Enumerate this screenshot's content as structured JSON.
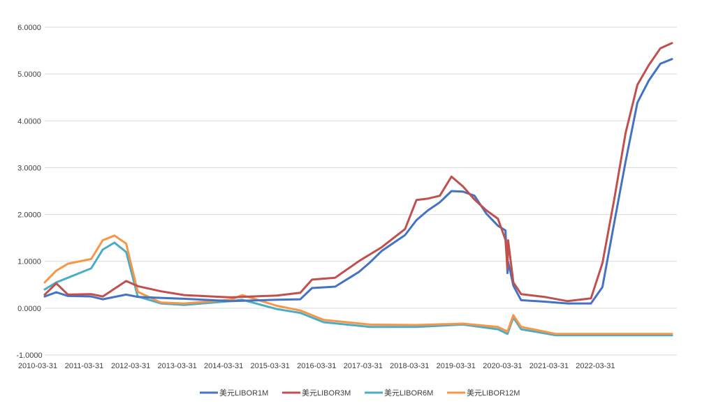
{
  "chart_data": {
    "type": "line",
    "title": "",
    "xlabel": "",
    "ylabel": "",
    "ylim": [
      -1,
      6
    ],
    "xlim": [
      "2010-03-31",
      "2023-09-29"
    ],
    "grid": "horizontal",
    "legend_position": "bottom",
    "y_ticks": [
      "-1.0000",
      "0.0000",
      "1.0000",
      "2.0000",
      "3.0000",
      "4.0000",
      "5.0000",
      "6.0000"
    ],
    "x_ticks": [
      "2010-03-31",
      "2011-03-31",
      "2012-03-31",
      "2013-03-31",
      "2014-03-31",
      "2015-03-31",
      "2016-03-31",
      "2017-03-31",
      "2018-03-31",
      "2019-03-31",
      "2020-03-31",
      "2021-03-31",
      "2022-03-31"
    ],
    "series": [
      {
        "name": "美元LIBOR1M",
        "color": "#4472C4",
        "points": [
          [
            "2010-03-31",
            0.25
          ],
          [
            "2010-06-30",
            0.34
          ],
          [
            "2010-09-30",
            0.26
          ],
          [
            "2011-03-31",
            0.25
          ],
          [
            "2011-06-30",
            0.19
          ],
          [
            "2011-12-31",
            0.29
          ],
          [
            "2012-03-31",
            0.24
          ],
          [
            "2012-09-30",
            0.22
          ],
          [
            "2013-03-31",
            0.2
          ],
          [
            "2014-03-31",
            0.15
          ],
          [
            "2015-03-31",
            0.18
          ],
          [
            "2015-09-30",
            0.19
          ],
          [
            "2015-12-31",
            0.43
          ],
          [
            "2016-06-30",
            0.46
          ],
          [
            "2016-12-31",
            0.77
          ],
          [
            "2017-03-31",
            0.98
          ],
          [
            "2017-06-30",
            1.22
          ],
          [
            "2017-12-31",
            1.56
          ],
          [
            "2018-03-31",
            1.88
          ],
          [
            "2018-06-30",
            2.09
          ],
          [
            "2018-09-30",
            2.26
          ],
          [
            "2018-12-31",
            2.5
          ],
          [
            "2019-03-31",
            2.49
          ],
          [
            "2019-06-30",
            2.4
          ],
          [
            "2019-09-30",
            2.02
          ],
          [
            "2019-12-31",
            1.76
          ],
          [
            "2020-02-28",
            1.66
          ],
          [
            "2020-03-15",
            0.75
          ],
          [
            "2020-03-20",
            0.99
          ],
          [
            "2020-04-30",
            0.48
          ],
          [
            "2020-06-30",
            0.17
          ],
          [
            "2020-12-31",
            0.14
          ],
          [
            "2021-06-30",
            0.1
          ],
          [
            "2021-12-31",
            0.1
          ],
          [
            "2022-03-31",
            0.45
          ],
          [
            "2022-06-30",
            1.79
          ],
          [
            "2022-09-30",
            3.14
          ],
          [
            "2022-12-31",
            4.39
          ],
          [
            "2023-03-31",
            4.86
          ],
          [
            "2023-06-30",
            5.22
          ],
          [
            "2023-09-29",
            5.32
          ]
        ]
      },
      {
        "name": "美元LIBOR3M",
        "color": "#C0504D",
        "points": [
          [
            "2010-03-31",
            0.29
          ],
          [
            "2010-06-30",
            0.53
          ],
          [
            "2010-09-30",
            0.29
          ],
          [
            "2011-03-31",
            0.3
          ],
          [
            "2011-06-30",
            0.25
          ],
          [
            "2011-12-31",
            0.58
          ],
          [
            "2012-03-31",
            0.47
          ],
          [
            "2012-09-30",
            0.36
          ],
          [
            "2013-03-31",
            0.28
          ],
          [
            "2014-03-31",
            0.23
          ],
          [
            "2015-03-31",
            0.27
          ],
          [
            "2015-09-30",
            0.33
          ],
          [
            "2015-12-31",
            0.61
          ],
          [
            "2016-06-30",
            0.65
          ],
          [
            "2016-12-31",
            1.0
          ],
          [
            "2017-03-31",
            1.15
          ],
          [
            "2017-06-30",
            1.3
          ],
          [
            "2017-12-31",
            1.69
          ],
          [
            "2018-03-31",
            2.31
          ],
          [
            "2018-06-30",
            2.34
          ],
          [
            "2018-09-30",
            2.4
          ],
          [
            "2018-12-31",
            2.81
          ],
          [
            "2019-03-31",
            2.6
          ],
          [
            "2019-06-30",
            2.32
          ],
          [
            "2019-09-30",
            2.09
          ],
          [
            "2019-12-31",
            1.91
          ],
          [
            "2020-02-28",
            1.46
          ],
          [
            "2020-03-15",
            0.85
          ],
          [
            "2020-03-20",
            1.45
          ],
          [
            "2020-04-30",
            0.55
          ],
          [
            "2020-06-30",
            0.3
          ],
          [
            "2020-12-31",
            0.24
          ],
          [
            "2021-06-30",
            0.15
          ],
          [
            "2021-12-31",
            0.21
          ],
          [
            "2022-03-31",
            0.96
          ],
          [
            "2022-06-30",
            2.29
          ],
          [
            "2022-09-30",
            3.75
          ],
          [
            "2022-12-31",
            4.77
          ],
          [
            "2023-03-31",
            5.19
          ],
          [
            "2023-06-30",
            5.55
          ],
          [
            "2023-09-29",
            5.66
          ]
        ]
      },
      {
        "name": "美元LIBOR6M",
        "color": "#4BACC6",
        "points": [
          [
            "2010-03-31",
            0.4
          ],
          [
            "2010-06-30",
            0.55
          ],
          [
            "2010-09-30",
            0.65
          ],
          [
            "2011-03-31",
            0.85
          ],
          [
            "2011-06-30",
            1.25
          ],
          [
            "2011-09-30",
            1.4
          ],
          [
            "2011-12-31",
            1.2
          ],
          [
            "2012-03-31",
            0.25
          ],
          [
            "2012-09-30",
            0.1
          ],
          [
            "2013-03-31",
            0.07
          ],
          [
            "2014-03-31",
            0.15
          ],
          [
            "2014-06-30",
            0.18
          ],
          [
            "2015-03-31",
            -0.02
          ],
          [
            "2015-09-30",
            -0.1
          ],
          [
            "2016-03-31",
            -0.3
          ],
          [
            "2017-03-31",
            -0.4
          ],
          [
            "2018-03-31",
            -0.4
          ],
          [
            "2019-03-31",
            -0.35
          ],
          [
            "2019-12-31",
            -0.45
          ],
          [
            "2020-03-15",
            -0.55
          ],
          [
            "2020-04-30",
            -0.2
          ],
          [
            "2020-06-30",
            -0.45
          ],
          [
            "2021-03-31",
            -0.58
          ],
          [
            "2022-03-31",
            -0.58
          ],
          [
            "2023-09-29",
            -0.58
          ]
        ]
      },
      {
        "name": "美元LIBOR12M",
        "color": "#F79646",
        "points": [
          [
            "2010-03-31",
            0.55
          ],
          [
            "2010-06-30",
            0.8
          ],
          [
            "2010-09-30",
            0.95
          ],
          [
            "2011-03-31",
            1.05
          ],
          [
            "2011-06-30",
            1.45
          ],
          [
            "2011-09-30",
            1.55
          ],
          [
            "2011-12-31",
            1.38
          ],
          [
            "2012-03-31",
            0.35
          ],
          [
            "2012-09-30",
            0.12
          ],
          [
            "2013-03-31",
            0.1
          ],
          [
            "2014-03-31",
            0.18
          ],
          [
            "2014-06-30",
            0.28
          ],
          [
            "2015-03-31",
            0.05
          ],
          [
            "2015-09-30",
            -0.05
          ],
          [
            "2016-03-31",
            -0.25
          ],
          [
            "2017-03-31",
            -0.35
          ],
          [
            "2018-03-31",
            -0.36
          ],
          [
            "2019-03-31",
            -0.33
          ],
          [
            "2019-12-31",
            -0.4
          ],
          [
            "2020-03-15",
            -0.5
          ],
          [
            "2020-04-30",
            -0.15
          ],
          [
            "2020-06-30",
            -0.4
          ],
          [
            "2021-03-31",
            -0.55
          ],
          [
            "2022-03-31",
            -0.55
          ],
          [
            "2023-09-29",
            -0.55
          ]
        ]
      }
    ]
  }
}
